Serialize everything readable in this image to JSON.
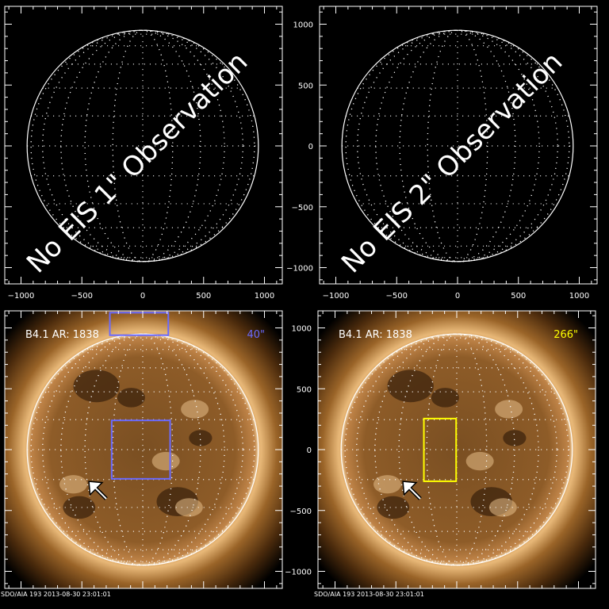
{
  "colors": {
    "axis": "#ffffff",
    "box_40": "#6a6aff",
    "box_266": "#ffff00",
    "sun_mid": "#8a5a24",
    "background": "#000000"
  },
  "axis": {
    "range": [
      -1150,
      1150
    ],
    "ticks": [
      -1000,
      -500,
      0,
      500,
      1000
    ],
    "tick_labels": [
      "−1000",
      "−500",
      "0",
      "500",
      "1000"
    ]
  },
  "panels": [
    {
      "id": "tl",
      "type": "empty",
      "overlay_text": "No EIS 1\" Observation",
      "show_yticks": false
    },
    {
      "id": "tr",
      "type": "empty",
      "overlay_text": "No EIS 2\" Observation",
      "show_yticks": true
    },
    {
      "id": "bl",
      "type": "sun",
      "label": "B4.1 AR: 1838",
      "slit_label": "40\"",
      "box_color": "#6a6aff",
      "boxes": [
        {
          "x": [
            -270,
            210
          ],
          "y": [
            940,
            1125
          ]
        },
        {
          "x": [
            -255,
            225
          ],
          "y": [
            240,
            -240
          ]
        }
      ],
      "footer": "SDO/AIA 193  2013-08-30 23:01:01",
      "show_yticks": false
    },
    {
      "id": "br",
      "type": "sun",
      "label": "B4.1 AR: 1838",
      "slit_label": "266\"",
      "box_color": "#ffff00",
      "boxes": [
        {
          "x": [
            -270,
            -5
          ],
          "y": [
            255,
            -260
          ]
        }
      ],
      "footer": "SDO/AIA 193  2013-08-30 23:01:01",
      "show_yticks": true
    }
  ],
  "sun_radius_arcsec": 950
}
